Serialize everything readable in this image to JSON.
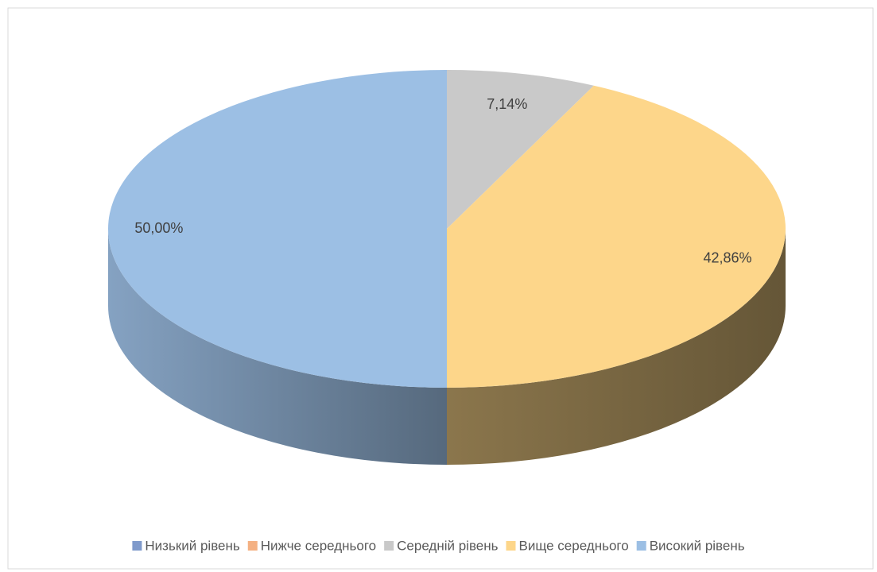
{
  "chart_data": {
    "type": "pie3d",
    "categories": [
      "Низький рівень",
      "Нижче середнього",
      "Середній рівень",
      "Вище середнього",
      "Високий рівень"
    ],
    "values": [
      0,
      0,
      7.14,
      42.86,
      50.0
    ],
    "value_labels": [
      null,
      null,
      "7,14%",
      "42,86%",
      "50,00%"
    ],
    "colors": [
      "#7f9acb",
      "#f4b183",
      "#c9c9c9",
      "#fdd68a",
      "#9cbfe4"
    ],
    "legend": "bottom"
  }
}
